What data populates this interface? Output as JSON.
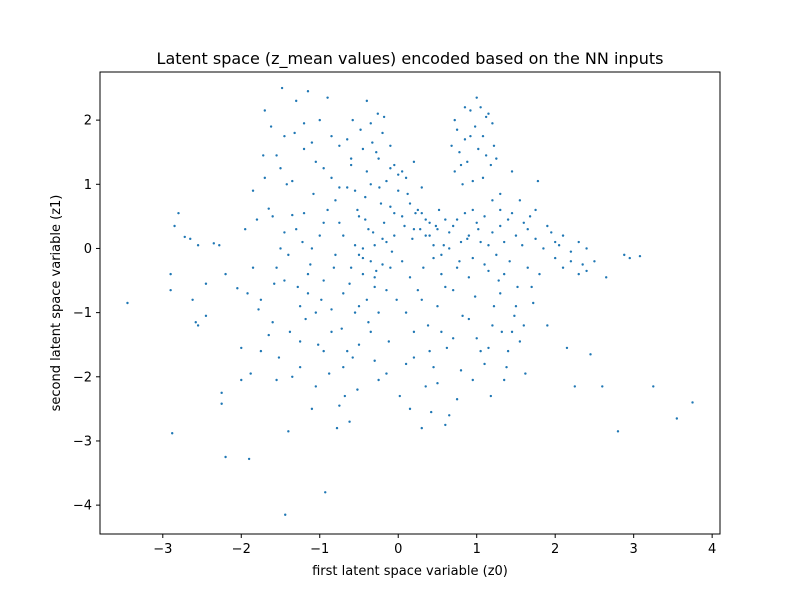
{
  "chart_data": {
    "type": "scatter",
    "title": "Latent space (z_mean values) encoded based on the NN inputs",
    "xlabel": "first latent space variable (z0)",
    "ylabel": "second latent space variable (z1)",
    "xlim": [
      -3.8,
      4.1
    ],
    "ylim": [
      -4.45,
      2.75
    ],
    "xticks": [
      -3,
      -2,
      -1,
      0,
      1,
      2,
      3,
      4
    ],
    "yticks": [
      -4,
      -3,
      -2,
      -1,
      0,
      1,
      2
    ],
    "xtick_labels": [
      "−3",
      "−2",
      "−1",
      "0",
      "1",
      "2",
      "3",
      "4"
    ],
    "ytick_labels": [
      "−4",
      "−3",
      "−2",
      "−1",
      "0",
      "1",
      "2"
    ],
    "grid": false,
    "marker_color": "#1f77b4",
    "points": [
      [
        -3.45,
        -0.85
      ],
      [
        -2.9,
        -0.4
      ],
      [
        -2.9,
        -0.65
      ],
      [
        -2.85,
        0.35
      ],
      [
        -2.8,
        0.55
      ],
      [
        -2.72,
        0.18
      ],
      [
        -2.65,
        0.15
      ],
      [
        -2.62,
        -0.8
      ],
      [
        -2.58,
        -1.15
      ],
      [
        -2.55,
        -1.2
      ],
      [
        -2.55,
        0.05
      ],
      [
        -2.45,
        -0.55
      ],
      [
        -2.45,
        -1.05
      ],
      [
        -2.35,
        0.08
      ],
      [
        -2.28,
        0.05
      ],
      [
        -2.25,
        -2.25
      ],
      [
        -2.25,
        -2.42
      ],
      [
        -2.2,
        -0.4
      ],
      [
        -2.2,
        -3.25
      ],
      [
        -2.88,
        -2.88
      ],
      [
        -2.05,
        -0.62
      ],
      [
        -2.0,
        -1.55
      ],
      [
        -2.0,
        -2.05
      ],
      [
        -1.95,
        0.3
      ],
      [
        -1.92,
        -0.7
      ],
      [
        -1.9,
        -3.28
      ],
      [
        -1.88,
        -1.95
      ],
      [
        -1.85,
        -0.3
      ],
      [
        -1.8,
        0.45
      ],
      [
        -1.78,
        -0.95
      ],
      [
        -1.75,
        -1.6
      ],
      [
        -1.72,
        1.45
      ],
      [
        -1.7,
        2.15
      ],
      [
        -1.65,
        0.62
      ],
      [
        -1.62,
        1.9
      ],
      [
        -1.6,
        -1.15
      ],
      [
        -1.58,
        -0.55
      ],
      [
        -1.55,
        -2.05
      ],
      [
        -1.52,
        -1.7
      ],
      [
        -1.5,
        1.25
      ],
      [
        -1.48,
        2.5
      ],
      [
        -1.45,
        0.25
      ],
      [
        -1.44,
        -4.15
      ],
      [
        -1.42,
        1.0
      ],
      [
        -1.4,
        -2.85
      ],
      [
        -1.38,
        -1.3
      ],
      [
        -1.35,
        0.52
      ],
      [
        -1.32,
        1.8
      ],
      [
        -1.3,
        2.3
      ],
      [
        -1.28,
        -0.6
      ],
      [
        -1.25,
        -1.85
      ],
      [
        -1.22,
        0.1
      ],
      [
        -1.2,
        1.55
      ],
      [
        -1.18,
        -1.1
      ],
      [
        -1.15,
        2.45
      ],
      [
        -1.12,
        -0.25
      ],
      [
        -1.1,
        -2.5
      ],
      [
        -1.08,
        0.85
      ],
      [
        -1.05,
        1.35
      ],
      [
        -1.02,
        -1.5
      ],
      [
        -1.0,
        2.0
      ],
      [
        -0.98,
        -0.8
      ],
      [
        -0.95,
        0.4
      ],
      [
        -0.93,
        -3.8
      ],
      [
        -0.9,
        2.35
      ],
      [
        -0.88,
        -1.95
      ],
      [
        -0.85,
        1.1
      ],
      [
        -0.82,
        -0.3
      ],
      [
        -0.8,
        0.75
      ],
      [
        -0.78,
        -2.8
      ],
      [
        -0.75,
        1.6
      ],
      [
        -0.72,
        -1.25
      ],
      [
        -0.7,
        0.2
      ],
      [
        -0.68,
        -2.3
      ],
      [
        -0.65,
        0.95
      ],
      [
        -0.62,
        -0.55
      ],
      [
        -0.6,
        1.3
      ],
      [
        -0.58,
        -1.7
      ],
      [
        -0.55,
        0.05
      ],
      [
        -0.52,
        0.6
      ],
      [
        -0.5,
        -0.9
      ],
      [
        -0.48,
        1.85
      ],
      [
        -0.45,
        -0.15
      ],
      [
        -0.42,
        0.45
      ],
      [
        -0.4,
        2.3
      ],
      [
        -0.38,
        -1.15
      ],
      [
        -0.35,
        1.0
      ],
      [
        -0.32,
        0.25
      ],
      [
        -0.3,
        -0.6
      ],
      [
        -0.28,
        1.5
      ],
      [
        -0.25,
        -2.05
      ],
      [
        -0.22,
        0.7
      ],
      [
        -0.2,
        -0.25
      ],
      [
        -0.18,
        2.05
      ],
      [
        -0.15,
        0.1
      ],
      [
        -0.12,
        -1.45
      ],
      [
        -0.1,
        1.25
      ],
      [
        -0.08,
        -0.05
      ],
      [
        -0.05,
        0.55
      ],
      [
        -0.02,
        -0.8
      ],
      [
        0.0,
        1.15
      ],
      [
        0.02,
        -2.3
      ],
      [
        0.05,
        -0.2
      ],
      [
        0.08,
        0.35
      ],
      [
        0.1,
        -1.0
      ],
      [
        0.12,
        0.85
      ],
      [
        0.15,
        -0.45
      ],
      [
        0.18,
        0.15
      ],
      [
        0.2,
        -1.7
      ],
      [
        0.22,
        0.55
      ],
      [
        0.25,
        -0.65
      ],
      [
        0.28,
        0.3
      ],
      [
        0.3,
        -2.8
      ],
      [
        0.32,
        -0.3
      ],
      [
        0.35,
        0.45
      ],
      [
        0.38,
        -1.2
      ],
      [
        0.4,
        0.2
      ],
      [
        0.42,
        -2.55
      ],
      [
        0.45,
        -0.15
      ],
      [
        0.48,
        0.35
      ],
      [
        0.5,
        -0.9
      ],
      [
        0.52,
        0.6
      ],
      [
        0.55,
        -0.4
      ],
      [
        0.58,
        0.05
      ],
      [
        0.6,
        -2.75
      ],
      [
        0.62,
        -1.55
      ],
      [
        0.65,
        0.25
      ],
      [
        0.68,
        1.6
      ],
      [
        0.7,
        -0.65
      ],
      [
        0.72,
        2.0
      ],
      [
        0.75,
        0.45
      ],
      [
        0.78,
        -0.2
      ],
      [
        0.8,
        1.3
      ],
      [
        0.82,
        -1.05
      ],
      [
        0.85,
        2.2
      ],
      [
        0.88,
        0.15
      ],
      [
        0.9,
        -0.45
      ],
      [
        0.92,
        1.75
      ],
      [
        0.95,
        0.6
      ],
      [
        0.98,
        -0.75
      ],
      [
        1.0,
        2.35
      ],
      [
        1.02,
        0.3
      ],
      [
        1.05,
        -1.6
      ],
      [
        1.08,
        1.1
      ],
      [
        1.1,
        -0.25
      ],
      [
        1.12,
        2.05
      ],
      [
        1.15,
        0.05
      ],
      [
        1.18,
        -2.3
      ],
      [
        1.2,
        0.75
      ],
      [
        1.22,
        -0.9
      ],
      [
        1.25,
        1.4
      ],
      [
        1.28,
        -0.5
      ],
      [
        1.3,
        0.35
      ],
      [
        1.32,
        -1.3
      ],
      [
        1.35,
        0.1
      ],
      [
        1.38,
        -1.85
      ],
      [
        1.4,
        0.45
      ],
      [
        1.42,
        -0.2
      ],
      [
        1.45,
        1.2
      ],
      [
        1.48,
        -1.05
      ],
      [
        1.5,
        0.2
      ],
      [
        1.52,
        -0.6
      ],
      [
        1.55,
        -1.45
      ],
      [
        1.58,
        0.05
      ],
      [
        1.6,
        0.4
      ],
      [
        1.62,
        -1.95
      ],
      [
        1.65,
        -0.3
      ],
      [
        1.68,
        0.5
      ],
      [
        1.72,
        -0.85
      ],
      [
        1.75,
        0.15
      ],
      [
        1.78,
        1.05
      ],
      [
        1.8,
        -0.4
      ],
      [
        1.85,
        0.0
      ],
      [
        1.9,
        -1.2
      ],
      [
        1.95,
        0.25
      ],
      [
        2.0,
        -0.15
      ],
      [
        2.05,
        0.05
      ],
      [
        2.1,
        -0.3
      ],
      [
        2.15,
        -1.55
      ],
      [
        2.2,
        -0.05
      ],
      [
        2.25,
        -2.15
      ],
      [
        2.3,
        0.1
      ],
      [
        2.35,
        -0.25
      ],
      [
        2.4,
        -0.35
      ],
      [
        2.45,
        -1.65
      ],
      [
        2.6,
        -2.15
      ],
      [
        2.65,
        -0.45
      ],
      [
        2.8,
        -2.85
      ],
      [
        2.88,
        -0.1
      ],
      [
        2.95,
        -0.15
      ],
      [
        3.08,
        -0.12
      ],
      [
        3.25,
        -2.15
      ],
      [
        3.55,
        -2.65
      ],
      [
        3.75,
        -2.4
      ],
      [
        -0.65,
        1.7
      ],
      [
        -0.6,
        1.4
      ],
      [
        -0.55,
        0.9
      ],
      [
        -0.5,
        0.5
      ],
      [
        -0.5,
        -0.1
      ],
      [
        -0.45,
        -0.4
      ],
      [
        -0.42,
        0.8
      ],
      [
        -0.4,
        1.2
      ],
      [
        -0.38,
        0.3
      ],
      [
        -0.35,
        -0.2
      ],
      [
        -0.33,
        1.65
      ],
      [
        -0.3,
        0.05
      ],
      [
        -0.28,
        -0.35
      ],
      [
        -0.26,
        2.1
      ],
      [
        -0.24,
        0.95
      ],
      [
        -0.2,
        1.8
      ],
      [
        -0.18,
        0.4
      ],
      [
        -0.15,
        1.05
      ],
      [
        -0.1,
        0.65
      ],
      [
        -0.05,
        1.3
      ],
      [
        0.0,
        0.9
      ],
      [
        0.05,
        0.5
      ],
      [
        0.1,
        1.1
      ],
      [
        0.15,
        0.7
      ],
      [
        0.2,
        0.3
      ],
      [
        0.25,
        0.6
      ],
      [
        0.3,
        0.55
      ],
      [
        0.35,
        0.2
      ],
      [
        0.4,
        0.4
      ],
      [
        0.45,
        0.05
      ],
      [
        0.5,
        0.3
      ],
      [
        0.55,
        -0.1
      ],
      [
        0.6,
        0.45
      ],
      [
        0.65,
        0.0
      ],
      [
        0.7,
        0.35
      ],
      [
        0.75,
        -0.3
      ],
      [
        0.8,
        0.1
      ],
      [
        0.85,
        0.55
      ],
      [
        0.9,
        0.2
      ],
      [
        0.95,
        -0.15
      ],
      [
        1.0,
        0.4
      ],
      [
        1.05,
        0.1
      ],
      [
        1.1,
        0.5
      ],
      [
        1.15,
        -0.35
      ],
      [
        1.2,
        0.25
      ],
      [
        1.25,
        -0.1
      ],
      [
        1.3,
        0.6
      ],
      [
        1.35,
        -0.4
      ],
      [
        0.72,
        1.2
      ],
      [
        0.75,
        1.85
      ],
      [
        0.78,
        1.5
      ],
      [
        0.82,
        1.0
      ],
      [
        0.85,
        1.7
      ],
      [
        0.88,
        1.35
      ],
      [
        0.92,
        2.15
      ],
      [
        0.95,
        1.05
      ],
      [
        0.98,
        1.9
      ],
      [
        1.02,
        1.55
      ],
      [
        1.05,
        2.2
      ],
      [
        1.08,
        1.75
      ],
      [
        1.12,
        1.45
      ],
      [
        1.15,
        2.1
      ],
      [
        1.18,
        1.3
      ],
      [
        1.2,
        1.95
      ],
      [
        1.22,
        1.6
      ],
      [
        -1.6,
        0.5
      ],
      [
        -1.5,
        0.0
      ],
      [
        -1.45,
        -0.5
      ],
      [
        -1.4,
        -0.1
      ],
      [
        -1.3,
        0.3
      ],
      [
        -1.25,
        -0.9
      ],
      [
        -1.2,
        0.55
      ],
      [
        -1.15,
        -0.4
      ],
      [
        -1.1,
        0.0
      ],
      [
        -1.05,
        -1.0
      ],
      [
        -1.0,
        0.2
      ],
      [
        -0.95,
        -0.5
      ],
      [
        -0.9,
        0.6
      ],
      [
        -0.85,
        -1.3
      ],
      [
        -0.8,
        -0.1
      ],
      [
        -0.75,
        0.4
      ],
      [
        -0.7,
        -0.7
      ],
      [
        -0.65,
        -1.6
      ],
      [
        -0.6,
        -0.3
      ],
      [
        -0.55,
        -1.0
      ],
      [
        -0.5,
        -1.5
      ],
      [
        -0.45,
        0.0
      ],
      [
        -0.4,
        -0.8
      ],
      [
        -0.35,
        -1.3
      ],
      [
        -0.3,
        -0.45
      ],
      [
        -0.25,
        -1.0
      ],
      [
        -0.2,
        0.15
      ],
      [
        -0.15,
        -0.65
      ],
      [
        -0.1,
        -0.3
      ],
      [
        -0.05,
        0.2
      ],
      [
        0.1,
        -1.8
      ],
      [
        0.2,
        -1.3
      ],
      [
        0.3,
        -0.8
      ],
      [
        0.4,
        -1.6
      ],
      [
        0.5,
        -2.1
      ],
      [
        0.55,
        -1.3
      ],
      [
        0.6,
        -0.6
      ],
      [
        0.7,
        -1.4
      ],
      [
        0.8,
        -1.9
      ],
      [
        0.9,
        -1.1
      ],
      [
        1.0,
        -1.4
      ],
      [
        1.1,
        -1.8
      ],
      [
        1.2,
        -1.2
      ],
      [
        1.3,
        -0.7
      ],
      [
        1.4,
        -1.6
      ],
      [
        1.5,
        -0.9
      ],
      [
        1.6,
        -1.2
      ],
      [
        1.7,
        -0.6
      ],
      [
        -1.75,
        -0.8
      ],
      [
        -1.65,
        -1.35
      ],
      [
        -1.55,
        -0.3
      ],
      [
        -1.35,
        -2.0
      ],
      [
        -1.25,
        -1.45
      ],
      [
        -1.15,
        -0.7
      ],
      [
        -1.05,
        -2.15
      ],
      [
        -0.95,
        -1.6
      ],
      [
        -0.85,
        -0.95
      ],
      [
        -0.75,
        -2.45
      ],
      [
        -0.7,
        -1.85
      ],
      [
        -0.62,
        -2.7
      ],
      [
        -0.52,
        -2.2
      ],
      [
        -0.3,
        -1.75
      ],
      [
        -0.15,
        -1.95
      ],
      [
        0.15,
        -2.5
      ],
      [
        0.35,
        -2.15
      ],
      [
        0.45,
        -1.85
      ],
      [
        0.65,
        -2.6
      ],
      [
        0.75,
        -2.35
      ],
      [
        0.95,
        -2.05
      ],
      [
        1.15,
        -1.55
      ],
      [
        1.35,
        -2.05
      ],
      [
        1.45,
        -1.3
      ],
      [
        -1.85,
        0.9
      ],
      [
        -1.7,
        1.1
      ],
      [
        -1.55,
        1.45
      ],
      [
        -1.45,
        1.75
      ],
      [
        -1.35,
        1.05
      ],
      [
        -1.2,
        1.95
      ],
      [
        -1.1,
        1.65
      ],
      [
        -0.95,
        1.25
      ],
      [
        -0.85,
        1.75
      ],
      [
        -0.75,
        0.95
      ],
      [
        -0.58,
        2.0
      ],
      [
        -0.45,
        1.55
      ],
      [
        -0.35,
        1.95
      ],
      [
        -0.25,
        1.4
      ],
      [
        -0.1,
        1.6
      ],
      [
        0.05,
        1.2
      ],
      [
        0.2,
        1.35
      ],
      [
        0.3,
        0.95
      ],
      [
        1.3,
        0.85
      ],
      [
        1.45,
        0.55
      ],
      [
        1.55,
        0.75
      ],
      [
        1.65,
        0.3
      ],
      [
        1.75,
        0.6
      ],
      [
        1.9,
        0.35
      ],
      [
        2.0,
        0.1
      ],
      [
        2.1,
        0.2
      ],
      [
        2.2,
        -0.2
      ],
      [
        2.3,
        -0.4
      ],
      [
        2.4,
        0.0
      ],
      [
        2.5,
        -0.2
      ]
    ]
  }
}
